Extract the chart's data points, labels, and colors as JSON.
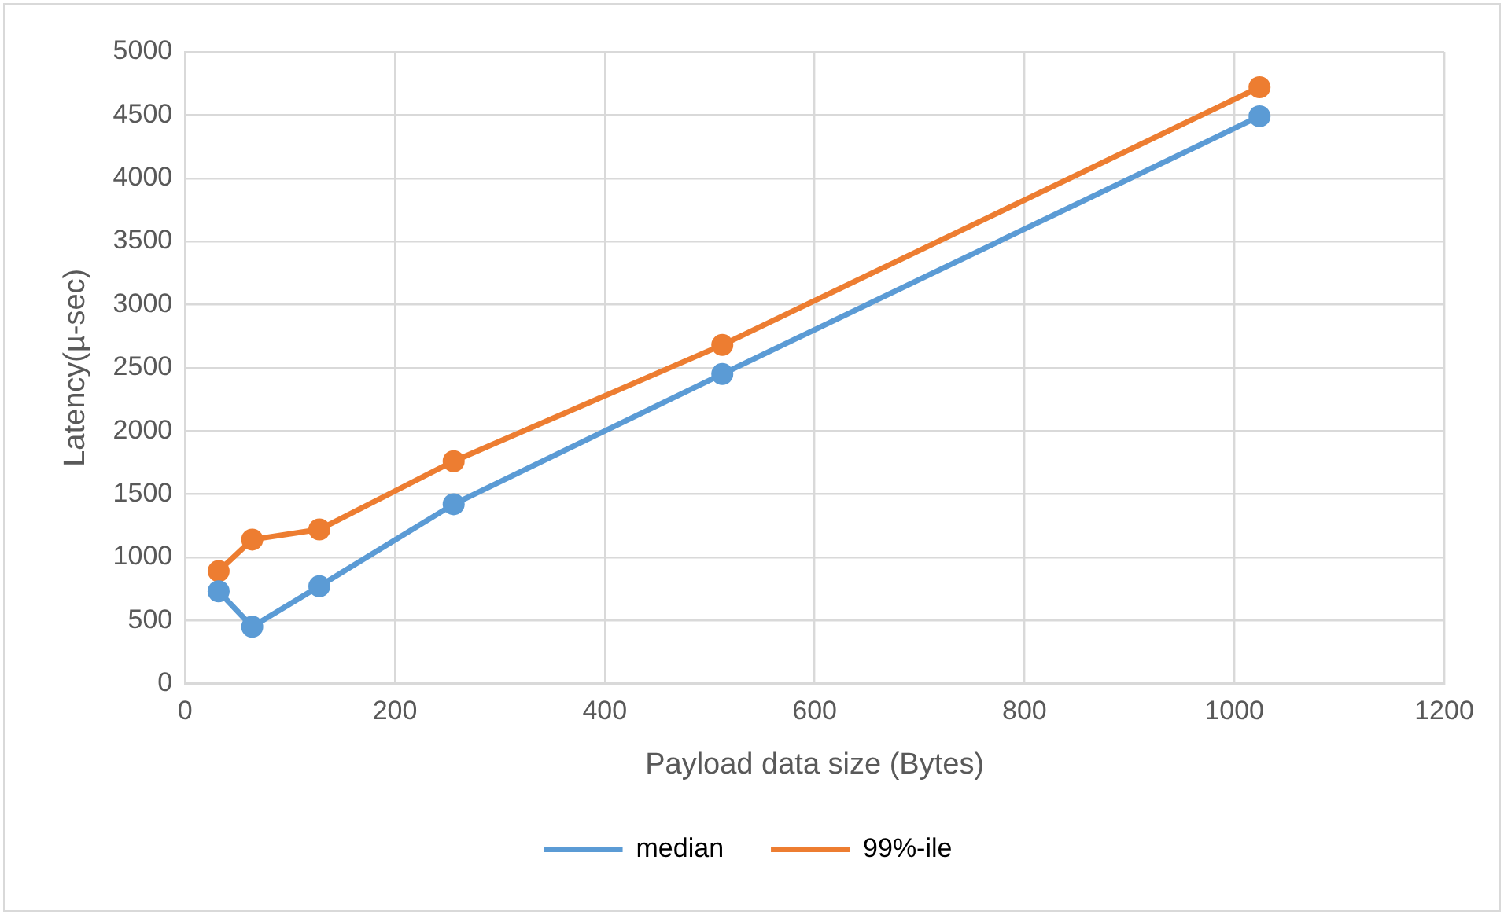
{
  "chart_data": {
    "type": "line",
    "xlabel": "Payload data size (Bytes)",
    "ylabel": "Latency(µ-sec)",
    "x": [
      32,
      64,
      128,
      256,
      512,
      1024
    ],
    "series": [
      {
        "name": "median",
        "color": "#5b9bd5",
        "values": [
          730,
          450,
          770,
          1420,
          2450,
          4490
        ]
      },
      {
        "name": "99%-ile",
        "color": "#ed7d31",
        "values": [
          890,
          1140,
          1220,
          1760,
          2680,
          4720
        ]
      }
    ],
    "xlim": [
      0,
      1200
    ],
    "xticks": [
      0,
      200,
      400,
      600,
      800,
      1000,
      1200
    ],
    "ylim": [
      0,
      5000
    ],
    "yticks": [
      0,
      500,
      1000,
      1500,
      2000,
      2500,
      3000,
      3500,
      4000,
      4500,
      5000
    ],
    "grid": true,
    "legend": "bottom",
    "marker": "circle",
    "line_style": "solid"
  }
}
